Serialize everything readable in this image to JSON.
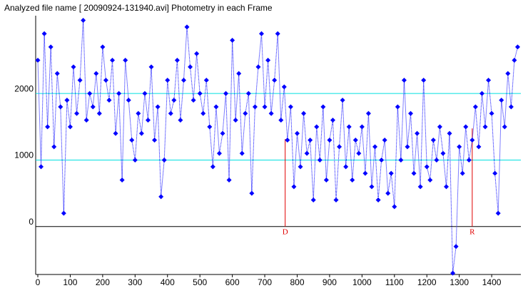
{
  "chart_data": {
    "type": "line",
    "title": "Analyzed file name [ 20090924-131940.avi]   Photometry in each Frame",
    "x": [
      0,
      10,
      20,
      30,
      40,
      50,
      60,
      70,
      80,
      90,
      100,
      110,
      120,
      130,
      140,
      150,
      160,
      170,
      180,
      190,
      200,
      210,
      220,
      230,
      240,
      250,
      260,
      270,
      280,
      290,
      300,
      310,
      320,
      330,
      340,
      350,
      360,
      370,
      380,
      390,
      400,
      410,
      420,
      430,
      440,
      450,
      460,
      470,
      480,
      490,
      500,
      510,
      520,
      530,
      540,
      550,
      560,
      570,
      580,
      590,
      600,
      610,
      620,
      630,
      640,
      650,
      660,
      670,
      680,
      690,
      700,
      710,
      720,
      730,
      740,
      750,
      760,
      770,
      780,
      790,
      800,
      810,
      820,
      830,
      840,
      850,
      860,
      870,
      880,
      890,
      900,
      910,
      920,
      930,
      940,
      950,
      960,
      970,
      980,
      990,
      1000,
      1010,
      1020,
      1030,
      1040,
      1050,
      1060,
      1070,
      1080,
      1090,
      1100,
      1110,
      1120,
      1130,
      1140,
      1150,
      1160,
      1170,
      1180,
      1190,
      1200,
      1210,
      1220,
      1230,
      1240,
      1250,
      1260,
      1270,
      1280,
      1290,
      1300,
      1310,
      1320,
      1330,
      1340,
      1350,
      1360,
      1370,
      1380,
      1390,
      1400,
      1410,
      1420,
      1430,
      1440,
      1450,
      1460,
      1470,
      1480
    ],
    "series": [
      {
        "color": "#0000ff",
        "values": [
          2500,
          900,
          2900,
          1500,
          2700,
          1200,
          2300,
          1800,
          200,
          1900,
          1500,
          2400,
          1700,
          2200,
          3100,
          1600,
          2000,
          1800,
          2300,
          1700,
          2700,
          2200,
          1900,
          2500,
          1400,
          2000,
          700,
          2500,
          1900,
          1300,
          1000,
          1700,
          1400,
          2000,
          1600,
          2400,
          1300,
          1800,
          450,
          1000,
          2200,
          1700,
          1900,
          2500,
          1600,
          2200,
          3000,
          2400,
          1900,
          2600,
          2000,
          1700,
          2200,
          1500,
          900,
          1800,
          1100,
          1400,
          2000,
          700,
          2800,
          1600,
          2300,
          1100,
          1700,
          2000,
          500,
          1800,
          2400,
          2900,
          1800,
          2500,
          1700,
          2200,
          2900,
          1600,
          2100,
          1300,
          1800,
          600,
          1400,
          900,
          1700,
          1100,
          1300,
          400,
          1500,
          1000,
          1800,
          700,
          1300,
          1600,
          400,
          1200,
          1900,
          900,
          1500,
          700,
          1300,
          1100,
          1500,
          800,
          1700,
          600,
          1200,
          400,
          1000,
          1300,
          500,
          800,
          300,
          1800,
          1000,
          2200,
          1200,
          1700,
          800,
          1400,
          600,
          2200,
          900,
          700,
          1300,
          1000,
          1500,
          1100,
          600,
          1400,
          -700,
          -300,
          1200,
          800,
          1500,
          1000,
          1300,
          1800,
          1200,
          2000,
          1500,
          2200,
          1700,
          800,
          200,
          1900,
          1500,
          2300,
          1800,
          2500,
          2700
        ]
      }
    ],
    "xlim": [
      0,
      1490
    ],
    "ylim": [
      -720,
      3170
    ],
    "xticks": [
      0,
      100,
      200,
      300,
      400,
      500,
      600,
      700,
      800,
      900,
      1000,
      1100,
      1200,
      1300,
      1400
    ],
    "yticks": [
      0,
      1000,
      2000
    ],
    "grid": true,
    "grid_color": "#00e0e0",
    "zero_line_color": "#000000",
    "annotations": [
      {
        "label": "D",
        "x": 763,
        "y": 1315,
        "color": "#e00000"
      },
      {
        "label": "R",
        "x": 1340,
        "y": 1475,
        "color": "#e00000"
      }
    ]
  }
}
